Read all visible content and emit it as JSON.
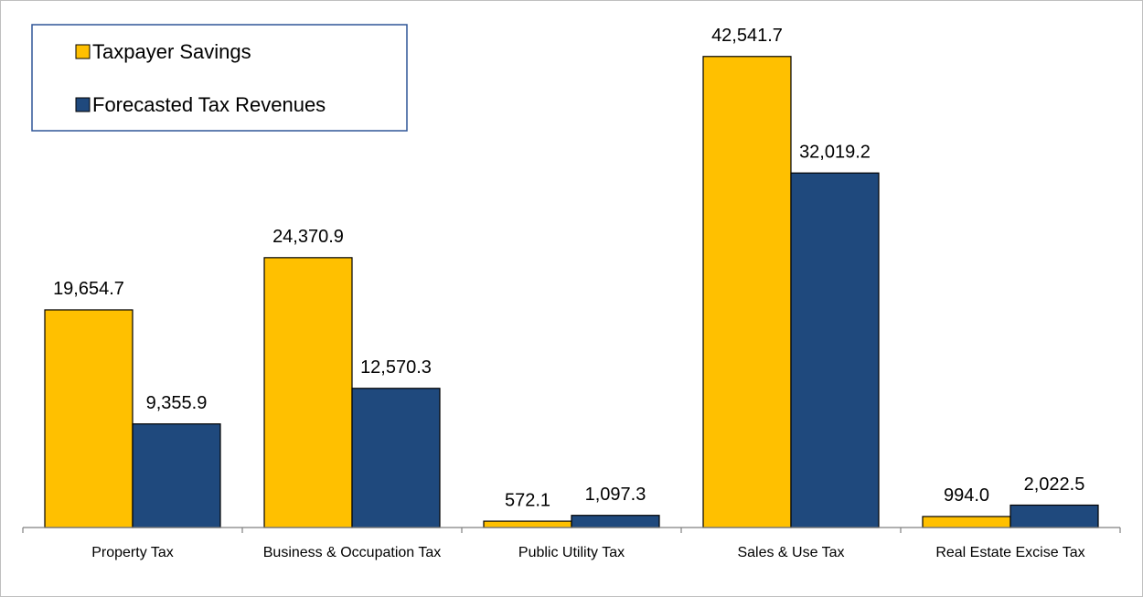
{
  "chart_data": {
    "type": "bar",
    "categories": [
      "Property Tax",
      "Business & Occupation Tax",
      "Public Utility Tax",
      "Sales & Use Tax",
      "Real Estate Excise Tax"
    ],
    "series": [
      {
        "name": "Taxpayer Savings",
        "color": "#ffc000",
        "values": [
          19654.7,
          24370.9,
          572.1,
          42541.7,
          994.0
        ],
        "value_labels": [
          "19,654.7",
          "24,370.9",
          "572.1",
          "42,541.7",
          "994.0"
        ]
      },
      {
        "name": "Forecasted Tax Revenues",
        "color": "#1f497d",
        "values": [
          9355.9,
          12570.3,
          1097.3,
          32019.2,
          2022.5
        ],
        "value_labels": [
          "9,355.9",
          "12,570.3",
          "1,097.3",
          "32,019.2",
          "2,022.5"
        ]
      }
    ],
    "ylim": [
      0,
      45000
    ],
    "legend": "upper left"
  }
}
